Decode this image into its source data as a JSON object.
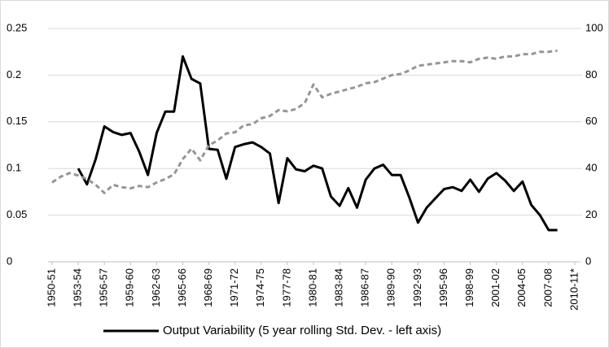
{
  "chart_data": {
    "type": "line",
    "categories": [
      "1950-51",
      null,
      null,
      "1953-54",
      null,
      null,
      "1956-57",
      null,
      null,
      "1959-60",
      null,
      null,
      "1962-63",
      null,
      null,
      "1965-66",
      null,
      null,
      "1968-69",
      null,
      null,
      "1971-72",
      null,
      null,
      "1974-75",
      null,
      null,
      "1977-78",
      null,
      null,
      "1980-81",
      null,
      null,
      "1983-84",
      null,
      null,
      "1986-87",
      null,
      null,
      "1989-90",
      null,
      null,
      "1992-93",
      null,
      null,
      "1995-96",
      null,
      null,
      "1998-99",
      null,
      null,
      "2001-02",
      null,
      null,
      "2004-05",
      null,
      null,
      "2007-08",
      null,
      null,
      "2010-11*"
    ],
    "series": [
      {
        "name": "Output Variability (5 year rolling Std. Dev. - left axis)",
        "color": "#000000",
        "dashed": false,
        "values": [
          null,
          null,
          null,
          0.1,
          0.083,
          0.11,
          0.145,
          0.139,
          0.136,
          0.138,
          0.118,
          0.093,
          0.138,
          0.161,
          0.161,
          0.22,
          0.196,
          0.191,
          0.121,
          0.12,
          0.089,
          0.123,
          0.126,
          0.128,
          0.123,
          0.116,
          0.063,
          0.111,
          0.099,
          0.097,
          0.103,
          0.1,
          0.07,
          0.06,
          0.079,
          0.058,
          0.088,
          0.1,
          0.104,
          0.093,
          0.093,
          0.069,
          0.042,
          0.058,
          0.068,
          0.078,
          0.08,
          0.076,
          0.088,
          0.075,
          0.089,
          0.095,
          0.087,
          0.076,
          0.086,
          0.061,
          0.05,
          0.034,
          0.034,
          null,
          null
        ]
      },
      {
        "color": "#969696",
        "dashed": true,
        "axis": "y2",
        "values": [
          34,
          36.5,
          38,
          37,
          35.5,
          33,
          29.5,
          33,
          32,
          31.5,
          32.5,
          32,
          34,
          35.5,
          37.5,
          44,
          48.5,
          43.5,
          50,
          52,
          55,
          55.5,
          58.5,
          59,
          61.5,
          62.5,
          65,
          64.5,
          65.5,
          68,
          76,
          70.5,
          72,
          73,
          74,
          75,
          76.5,
          77,
          78.5,
          80,
          80.5,
          82,
          84,
          84.5,
          85,
          85.5,
          86,
          86,
          85.5,
          87,
          87.5,
          87,
          88,
          88,
          89,
          89,
          90,
          90,
          90.5,
          null,
          null
        ]
      }
    ],
    "ylim": [
      0,
      0.25
    ],
    "yticks": [
      0,
      0.05,
      0.1,
      0.15,
      0.2,
      0.25
    ],
    "y2lim": [
      0,
      100
    ],
    "y2ticks": [
      0,
      20,
      40,
      60,
      80,
      100
    ],
    "grid": true,
    "legend": "bottom"
  }
}
